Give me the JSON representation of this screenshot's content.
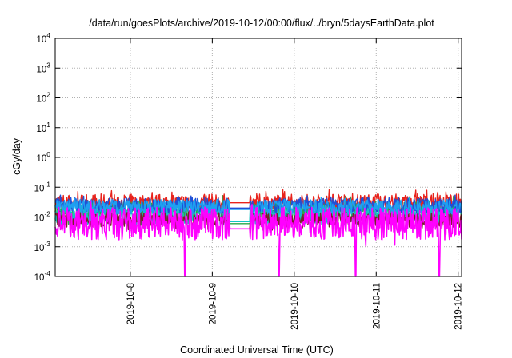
{
  "chart_data": {
    "type": "line",
    "title": "/data/run/goesPlots/archive/2019-10-12/00:00/flux/../bryn/5daysEarthData.plot",
    "xlabel": "Coordinated Universal Time (UTC)",
    "ylabel": "cGy/day",
    "yscale": "log",
    "ylim": [
      0.0001,
      10000
    ],
    "xlim": [
      "2019-10-07 02:00",
      "2019-10-12 01:00"
    ],
    "y_ticks": [
      {
        "value": 0.0001,
        "base": "10",
        "exp": "-4"
      },
      {
        "value": 0.001,
        "base": "10",
        "exp": "-3"
      },
      {
        "value": 0.01,
        "base": "10",
        "exp": "-2"
      },
      {
        "value": 0.1,
        "base": "10",
        "exp": "-1"
      },
      {
        "value": 1,
        "base": "10",
        "exp": "0"
      },
      {
        "value": 10,
        "base": "10",
        "exp": "1"
      },
      {
        "value": 100,
        "base": "10",
        "exp": "2"
      },
      {
        "value": 1000,
        "base": "10",
        "exp": "3"
      },
      {
        "value": 10000,
        "base": "10",
        "exp": "4"
      }
    ],
    "x_ticks": [
      "2019-10-8",
      "2019-10-9",
      "2019-10-10",
      "2019-10-11",
      "2019-10-12"
    ],
    "grid": true,
    "series": [
      {
        "color": "#e8231c",
        "mean": 0.03,
        "spread": 0.3,
        "gap_value": 0.03,
        "dropouts": []
      },
      {
        "color": "#2aa84a",
        "mean": 0.015,
        "spread": 0.35,
        "gap_value": 0.006,
        "dropouts": []
      },
      {
        "color": "#14c3c3",
        "mean": 0.012,
        "spread": 0.35,
        "gap_value": 0.007,
        "dropouts": []
      },
      {
        "color": "#7a1f2a",
        "mean": 0.008,
        "spread": 0.25,
        "gap_value": 0.004,
        "dropouts": []
      },
      {
        "color": "#1f4fd6",
        "mean": 0.025,
        "spread": 0.25,
        "gap_value": 0.02,
        "dropouts": []
      },
      {
        "color": "#1ea0f0",
        "mean": 0.022,
        "spread": 0.25,
        "gap_value": 0.018,
        "dropouts": []
      },
      {
        "color": "#ff00ff",
        "mean": 0.006,
        "spread": 0.55,
        "gap_value": 0.004,
        "dropouts": [
          "2019-10-08 16:00",
          "2019-10-09 19:30",
          "2019-10-10 18:00",
          "2019-10-11 18:30"
        ]
      }
    ],
    "data_gap": [
      "2019-10-09 05:00",
      "2019-10-09 11:00"
    ]
  }
}
